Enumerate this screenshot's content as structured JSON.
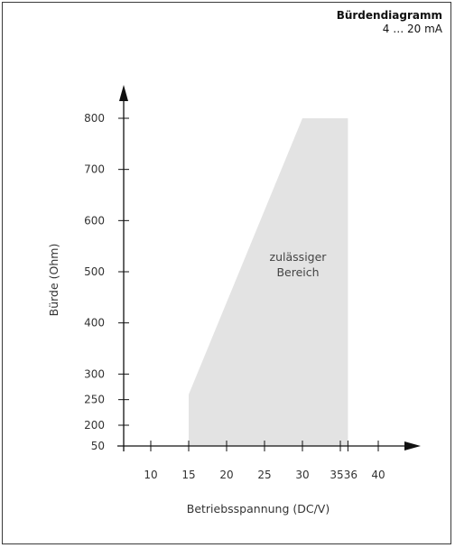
{
  "header": {
    "title": "Bürdendiagramm",
    "subtitle": "4 … 20 mA"
  },
  "chart_data": {
    "type": "area",
    "title": "Bürdendiagramm",
    "subtitle": "4 … 20 mA",
    "xlabel": "Betriebsspannung (DC/V)",
    "ylabel": "Bürde (Ohm)",
    "x_ticks": [
      10,
      15,
      20,
      25,
      30,
      35,
      36,
      40
    ],
    "x_tick_labels": [
      "10",
      "15",
      "20",
      "25",
      "30",
      "35",
      "36",
      "40"
    ],
    "y_ticks": [
      50,
      200,
      250,
      300,
      400,
      500,
      600,
      700,
      800
    ],
    "y_tick_labels": [
      "50",
      "200",
      "250",
      "300",
      "400",
      "500",
      "600",
      "700",
      "800"
    ],
    "xlim": [
      5,
      44
    ],
    "ylim": [
      50,
      800
    ],
    "region": {
      "label_line1": "zulässiger",
      "label_line2": "Bereich",
      "color": "#e3e3e3",
      "points": [
        [
          15,
          50
        ],
        [
          15,
          260
        ],
        [
          30,
          800
        ],
        [
          36,
          800
        ],
        [
          36,
          50
        ]
      ]
    },
    "grid": false,
    "legend": "none"
  },
  "colors": {
    "axis": "#111111",
    "region": "#e3e3e3",
    "frame": "#3a3a3a"
  }
}
